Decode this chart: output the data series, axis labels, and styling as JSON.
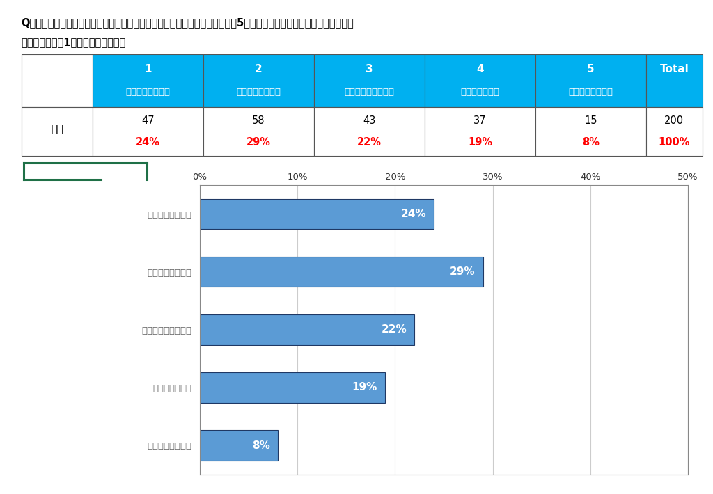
{
  "question_line1": "Q：あなたは、当店のサービスについてどの程度満足されていますか？以下の5つの選択肢の中からあなたのお気持ちに",
  "question_line2": "一番近いものを1つお選びください。",
  "header_nums": [
    "1",
    "2",
    "3",
    "4",
    "5",
    "Total"
  ],
  "header_labels": [
    "大変満足している",
    "まあ満足している",
    "どちらとも言えない",
    "少し不満である",
    "とても不満である",
    ""
  ],
  "row_label": "全体",
  "counts": [
    47,
    58,
    43,
    37,
    15,
    200
  ],
  "percentages": [
    "24%",
    "29%",
    "22%",
    "19%",
    "8%",
    "100%"
  ],
  "bar_categories": [
    "大変満足している",
    "まあ満足している",
    "どちらとも言えない",
    "少し不満である",
    "とても不満である"
  ],
  "bar_values": [
    24,
    29,
    22,
    19,
    8
  ],
  "bar_labels": [
    "24%",
    "29%",
    "22%",
    "19%",
    "8%"
  ],
  "bar_color": "#5B9BD5",
  "bar_edge_color": "#1F3864",
  "header_bg_color": "#00B0F0",
  "header_text_color": "#FFFFFF",
  "percentage_color": "#FF0000",
  "table_border_color": "#555555",
  "axis_xlim": [
    0,
    50
  ],
  "xtick_values": [
    0,
    10,
    20,
    30,
    40,
    50
  ],
  "xtick_labels": [
    "0%",
    "10%",
    "20%",
    "30%",
    "40%",
    "50%"
  ],
  "bg_color": "#FFFFFF",
  "green_rect_color": "#1F7047"
}
